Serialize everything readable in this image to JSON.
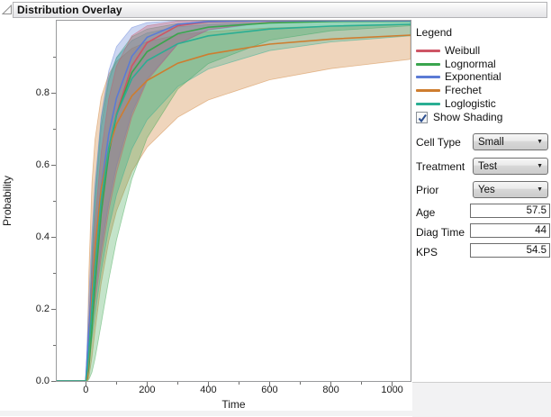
{
  "window": {
    "title": "Distribution Overlay"
  },
  "legend": {
    "title": "Legend",
    "items": [
      {
        "label": "Weibull",
        "color": "#ce5565"
      },
      {
        "label": "Lognormal",
        "color": "#3aa54e"
      },
      {
        "label": "Exponential",
        "color": "#5b7bd5"
      },
      {
        "label": "Frechet",
        "color": "#ce7d2f"
      },
      {
        "label": "Loglogistic",
        "color": "#2aae93"
      }
    ]
  },
  "controls": {
    "show_shading": {
      "label": "Show Shading",
      "checked": true
    },
    "dropdowns": [
      {
        "label": "Cell Type",
        "value": "Small"
      },
      {
        "label": "Treatment",
        "value": "Test"
      },
      {
        "label": "Prior",
        "value": "Yes"
      }
    ],
    "fields": [
      {
        "label": "Age",
        "value": "57.5"
      },
      {
        "label": "Diag Time",
        "value": "44"
      },
      {
        "label": "KPS",
        "value": "54.5"
      }
    ]
  },
  "chart_data": {
    "type": "line",
    "title": "Distribution Overlay",
    "xlabel": "Time",
    "ylabel": "Probability",
    "xlim": [
      -95,
      1060
    ],
    "ylim": [
      0,
      1
    ],
    "grid": false,
    "legend_position": "right",
    "shading": true,
    "x_ticks": [
      0,
      200,
      400,
      600,
      800,
      1000
    ],
    "x_minor_ticks": [
      100,
      300,
      500,
      700,
      900
    ],
    "y_ticks": [
      0,
      0.2,
      0.4,
      0.6,
      0.8
    ],
    "y_tick_labels": [
      "0.0",
      "0.2",
      "0.4",
      "0.6",
      "0.8"
    ],
    "y_minor_ticks": [
      0.1,
      0.3,
      0.5,
      0.7,
      0.9
    ],
    "x": [
      0,
      5,
      10,
      20,
      30,
      50,
      75,
      100,
      150,
      200,
      300,
      400,
      600,
      800,
      1060
    ],
    "band_draw_order": [
      3,
      1,
      4,
      2,
      0
    ],
    "series": [
      {
        "name": "Weibull",
        "color": "#ce5565",
        "values": [
          0,
          0.056,
          0.113,
          0.221,
          0.317,
          0.479,
          0.632,
          0.741,
          0.874,
          0.939,
          0.986,
          0.997,
          1.0,
          1.0,
          1.0
        ],
        "lower": [
          0,
          0.036,
          0.074,
          0.147,
          0.216,
          0.341,
          0.472,
          0.578,
          0.733,
          0.833,
          0.935,
          0.975,
          0.997,
          0.9995,
          1.0
        ],
        "upper": [
          0,
          0.085,
          0.168,
          0.318,
          0.443,
          0.632,
          0.784,
          0.874,
          0.958,
          0.986,
          0.999,
          1.0,
          1.0,
          1.0,
          1.0
        ]
      },
      {
        "name": "Lognormal",
        "color": "#3aa54e",
        "values": [
          0,
          0.006,
          0.037,
          0.145,
          0.264,
          0.463,
          0.631,
          0.738,
          0.856,
          0.914,
          0.964,
          0.982,
          0.994,
          0.998,
          0.999
        ],
        "lower": [
          0,
          0.0003,
          0.004,
          0.024,
          0.061,
          0.157,
          0.281,
          0.391,
          0.56,
          0.675,
          0.81,
          0.881,
          0.946,
          0.972,
          0.986
        ],
        "upper": [
          0,
          0.03,
          0.124,
          0.335,
          0.5,
          0.705,
          0.833,
          0.898,
          0.955,
          0.977,
          0.992,
          0.997,
          0.999,
          1.0,
          1.0
        ]
      },
      {
        "name": "Exponential",
        "color": "#5b7bd5",
        "values": [
          0,
          0.074,
          0.143,
          0.265,
          0.37,
          0.537,
          0.685,
          0.785,
          0.901,
          0.954,
          0.99,
          0.998,
          1.0,
          1.0,
          1.0
        ],
        "lower": [
          0,
          0.044,
          0.087,
          0.166,
          0.239,
          0.365,
          0.494,
          0.597,
          0.744,
          0.838,
          0.935,
          0.974,
          0.996,
          0.999,
          1.0
        ],
        "upper": [
          0,
          0.123,
          0.231,
          0.409,
          0.546,
          0.732,
          0.861,
          0.928,
          0.981,
          0.995,
          1.0,
          1.0,
          1.0,
          1.0,
          1.0
        ]
      },
      {
        "name": "Frechet",
        "color": "#ce7d2f",
        "values": [
          0,
          0.007,
          0.068,
          0.237,
          0.368,
          0.532,
          0.645,
          0.713,
          0.791,
          0.834,
          0.882,
          0.907,
          0.935,
          0.949,
          0.96
        ],
        "lower": [
          0,
          0.0003,
          0.009,
          0.066,
          0.139,
          0.27,
          0.388,
          0.472,
          0.581,
          0.649,
          0.732,
          0.78,
          0.836,
          0.867,
          0.893
        ],
        "upper": [
          0,
          0.091,
          0.301,
          0.549,
          0.67,
          0.787,
          0.852,
          0.887,
          0.923,
          0.942,
          0.961,
          0.97,
          0.98,
          0.985,
          0.989
        ]
      },
      {
        "name": "Loglogistic",
        "color": "#2aae93",
        "values": [
          0,
          0.031,
          0.082,
          0.202,
          0.317,
          0.5,
          0.648,
          0.739,
          0.839,
          0.889,
          0.936,
          0.958,
          0.977,
          0.985,
          0.99
        ],
        "lower": [
          0,
          0.021,
          0.051,
          0.117,
          0.183,
          0.303,
          0.424,
          0.517,
          0.644,
          0.725,
          0.817,
          0.866,
          0.917,
          0.941,
          0.958
        ],
        "upper": [
          0,
          0.051,
          0.148,
          0.361,
          0.529,
          0.728,
          0.842,
          0.897,
          0.945,
          0.966,
          0.983,
          0.989,
          0.995,
          0.997,
          0.998
        ]
      }
    ]
  }
}
